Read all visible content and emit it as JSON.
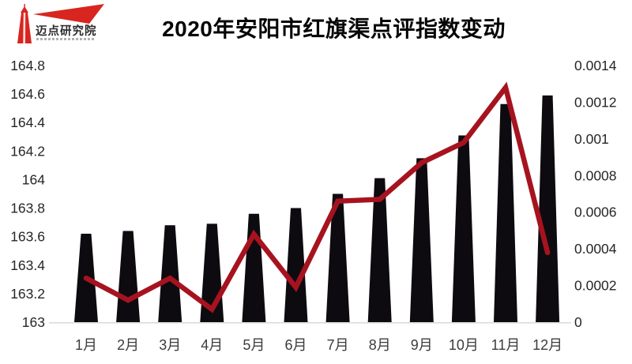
{
  "header": {
    "title": "2020年安阳市红旗渠点评指数变动",
    "logo_name": "迈点研究院",
    "logo_color": "#d8251f"
  },
  "chart_data": {
    "type": "bar+line",
    "title": "2020年安阳市红旗渠点评指数变动",
    "categories": [
      "1月",
      "2月",
      "3月",
      "4月",
      "5月",
      "6月",
      "7月",
      "8月",
      "9月",
      "10月",
      "11月",
      "12月"
    ],
    "series": [
      {
        "name": "index-bars",
        "type": "bar",
        "axis": "left",
        "color": "#0e0b10",
        "values": [
          163.62,
          163.64,
          163.68,
          163.69,
          163.76,
          163.8,
          163.9,
          164.01,
          164.15,
          164.31,
          164.53,
          164.59
        ]
      },
      {
        "name": "change-line",
        "type": "line",
        "axis": "right",
        "color": "#a6131f",
        "values": [
          0.00024,
          0.00012,
          0.00024,
          7e-05,
          0.00048,
          0.00019,
          0.00066,
          0.00067,
          0.00087,
          0.00098,
          0.00128,
          0.00038
        ]
      }
    ],
    "left_axis": {
      "min": 163,
      "max": 164.8,
      "step": 0.2,
      "ticks": [
        "164.8",
        "164.6",
        "164.4",
        "164.2",
        "164",
        "163.8",
        "163.6",
        "163.4",
        "163.2",
        "163"
      ]
    },
    "right_axis": {
      "min": 0,
      "max": 0.0014,
      "step": 0.0002,
      "ticks": [
        "0.0014",
        "0.0012",
        "0.001",
        "0.0008",
        "0.0006",
        "0.0004",
        "0.0002",
        "0"
      ]
    },
    "grid": false,
    "legend": "none",
    "axis_line_color": "#dcdcdc",
    "tick_color": "#262626",
    "category_color": "#3c3c3c"
  }
}
